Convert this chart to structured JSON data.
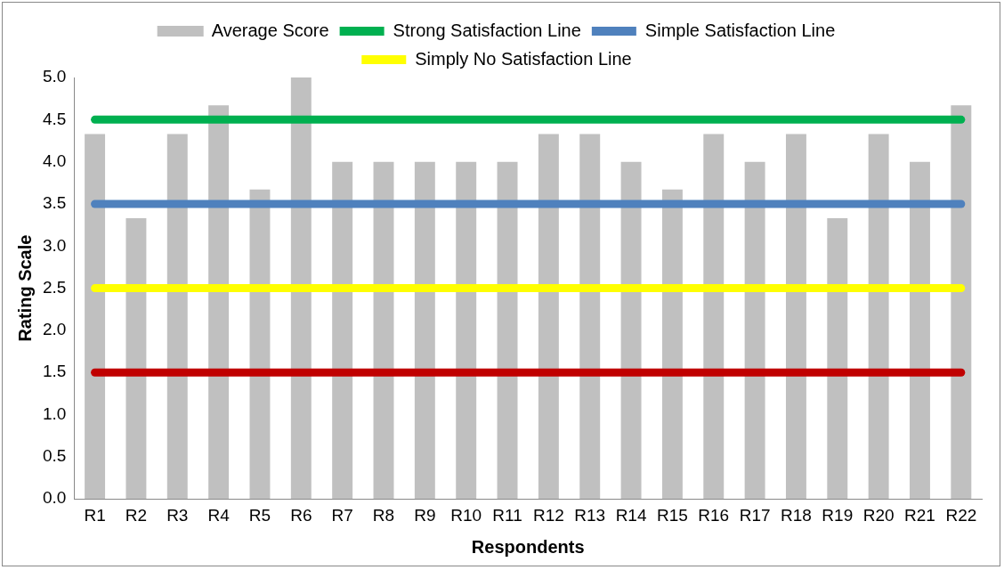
{
  "chart_data": {
    "type": "bar",
    "xlabel": "Respondents",
    "ylabel": "Rating Scale",
    "categories": [
      "R1",
      "R2",
      "R3",
      "R4",
      "R5",
      "R6",
      "R7",
      "R8",
      "R9",
      "R10",
      "R11",
      "R12",
      "R13",
      "R14",
      "R15",
      "R16",
      "R17",
      "R18",
      "R19",
      "R20",
      "R21",
      "R22"
    ],
    "series": [
      {
        "name": "Average Score",
        "color": "#c0c0c0",
        "values": [
          4.33,
          3.33,
          4.33,
          4.67,
          3.67,
          5.0,
          4.0,
          4.0,
          4.0,
          4.0,
          4.0,
          4.33,
          4.33,
          4.0,
          3.67,
          4.33,
          4.0,
          4.33,
          3.33,
          4.33,
          4.0,
          4.67
        ]
      },
      {
        "name": "Strong Satisfaction Line",
        "type": "line",
        "color": "#00b050",
        "values": [
          4.5,
          4.5,
          4.5,
          4.5,
          4.5,
          4.5,
          4.5,
          4.5,
          4.5,
          4.5,
          4.5,
          4.5,
          4.5,
          4.5,
          4.5,
          4.5,
          4.5,
          4.5,
          4.5,
          4.5,
          4.5,
          4.5
        ]
      },
      {
        "name": "Simple Satisfaction Line",
        "type": "line",
        "color": "#4f81bd",
        "values": [
          3.5,
          3.5,
          3.5,
          3.5,
          3.5,
          3.5,
          3.5,
          3.5,
          3.5,
          3.5,
          3.5,
          3.5,
          3.5,
          3.5,
          3.5,
          3.5,
          3.5,
          3.5,
          3.5,
          3.5,
          3.5,
          3.5
        ]
      },
      {
        "name": "Simply No Satisfaction Line",
        "type": "line",
        "color": "#ffff00",
        "values": [
          2.5,
          2.5,
          2.5,
          2.5,
          2.5,
          2.5,
          2.5,
          2.5,
          2.5,
          2.5,
          2.5,
          2.5,
          2.5,
          2.5,
          2.5,
          2.5,
          2.5,
          2.5,
          2.5,
          2.5,
          2.5,
          2.5
        ]
      },
      {
        "type": "line",
        "color": "#c00000",
        "values": [
          1.5,
          1.5,
          1.5,
          1.5,
          1.5,
          1.5,
          1.5,
          1.5,
          1.5,
          1.5,
          1.5,
          1.5,
          1.5,
          1.5,
          1.5,
          1.5,
          1.5,
          1.5,
          1.5,
          1.5,
          1.5,
          1.5
        ]
      }
    ],
    "ylim": [
      0,
      5
    ],
    "yticks": [
      {
        "value": 0,
        "label": "0.0"
      },
      {
        "value": 0.5,
        "label": "0.5"
      },
      {
        "value": 1,
        "label": "1.0"
      },
      {
        "value": 1.5,
        "label": "1.5"
      },
      {
        "value": 2,
        "label": "2.0"
      },
      {
        "value": 2.5,
        "label": "2.5"
      },
      {
        "value": 3,
        "label": "3.0"
      },
      {
        "value": 3.5,
        "label": "3.5"
      },
      {
        "value": 4,
        "label": "4.0"
      },
      {
        "value": 4.5,
        "label": "4.5"
      },
      {
        "value": 5,
        "label": "5.0"
      }
    ],
    "grid": false,
    "legend": "top",
    "marker": "none",
    "line_style": "solid"
  }
}
